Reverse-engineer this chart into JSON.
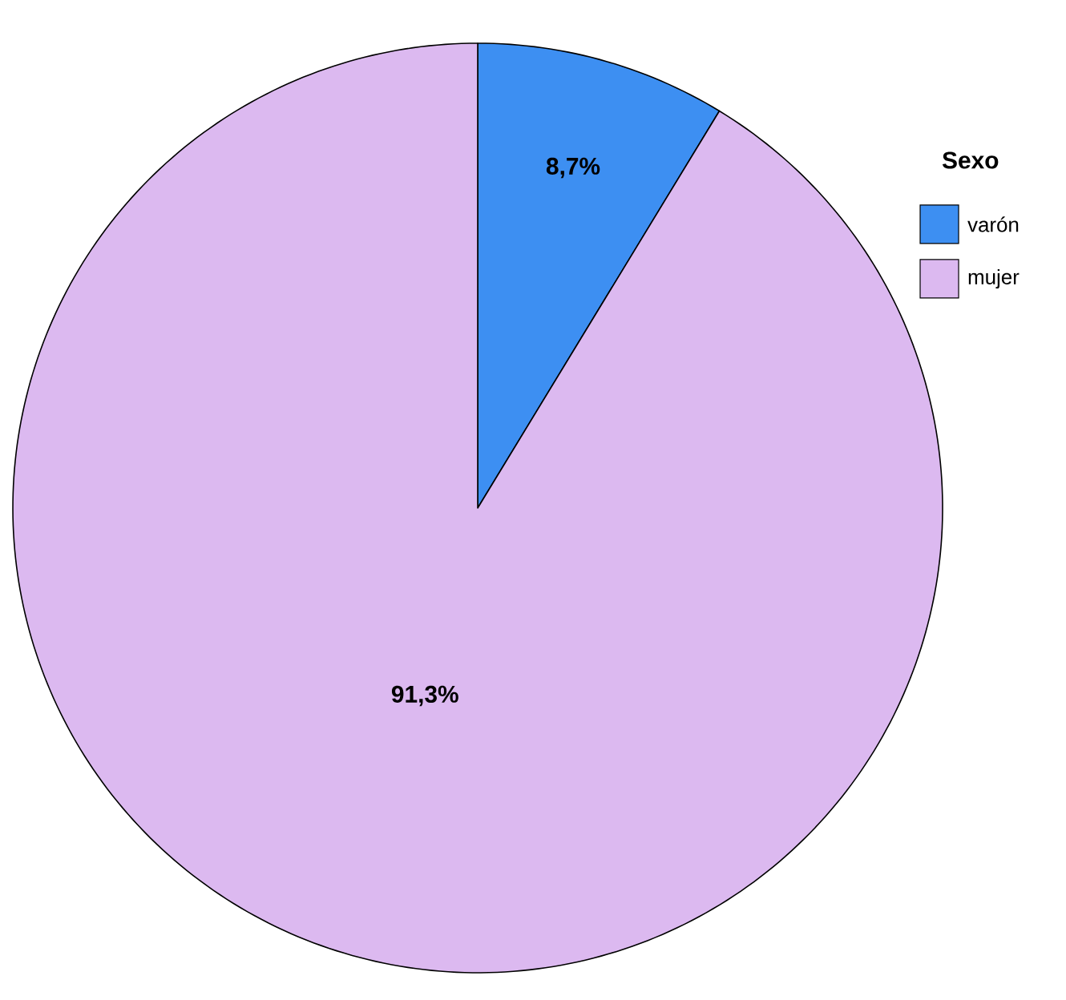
{
  "chart_data": {
    "type": "pie",
    "legend_title": "Sexo",
    "legend": "top right",
    "categories": [
      "varón",
      "mujer"
    ],
    "values": [
      8.7,
      91.3
    ],
    "colors": [
      "#3d8ff2",
      "#dcb9f0"
    ],
    "value_labels": [
      "8,7%",
      "91,3%"
    ]
  }
}
